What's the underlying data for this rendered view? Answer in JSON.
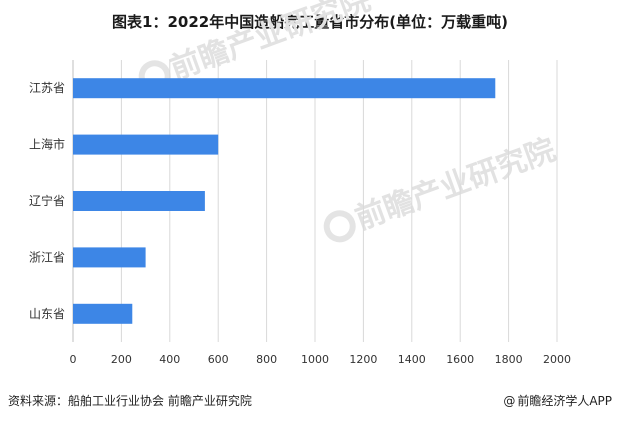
{
  "footer": {
    "source_label": "资料来源：",
    "source_text": "船舶工业行业协会 前瞻产业研究院",
    "copyright_symbol": "@",
    "brand_text": "前瞻经济学人APP"
  },
  "watermark": {
    "text": "前瞻产业研究院",
    "icon": "qianzhan-logo-icon"
  },
  "chart_data": {
    "type": "bar",
    "orientation": "horizontal",
    "title": "图表1：2022年中国造船完工量省市分布(单位：万载重吨)",
    "categories": [
      "江苏省",
      "上海市",
      "辽宁省",
      "浙江省",
      "山东省"
    ],
    "values": [
      1745,
      600,
      545,
      300,
      245
    ],
    "xlim": [
      0,
      2000
    ],
    "xticks": [
      "0",
      "200",
      "400",
      "600",
      "800",
      "1000",
      "1200",
      "1400",
      "1600",
      "1800",
      "2000"
    ],
    "bar_color": "#3d86e6",
    "grid": true
  }
}
